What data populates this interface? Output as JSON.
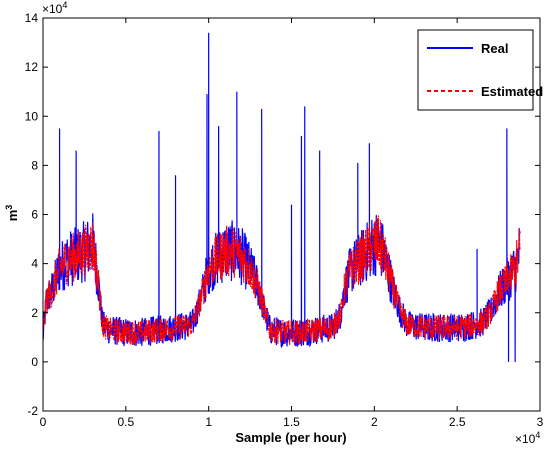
{
  "chart_data": {
    "type": "line",
    "xlabel": "Sample (per hour)",
    "ylabel": "m",
    "ylabel_superscript": "3",
    "x_multiplier": "×10",
    "x_multiplier_exp": "4",
    "y_multiplier": "×10",
    "y_multiplier_exp": "4",
    "xlim": [
      0,
      3
    ],
    "ylim": [
      -2,
      14
    ],
    "x_ticks": [
      0,
      0.5,
      1,
      1.5,
      2,
      2.5,
      3
    ],
    "x_tick_labels": [
      "0",
      "0.5",
      "1",
      "1.5",
      "2",
      "2.5",
      "3"
    ],
    "y_ticks": [
      -2,
      0,
      2,
      4,
      6,
      8,
      10,
      12,
      14
    ],
    "y_tick_labels": [
      "-2",
      "0",
      "2",
      "4",
      "6",
      "8",
      "10",
      "12",
      "14"
    ],
    "grid": false,
    "legend_position": "top-right",
    "series": [
      {
        "name": "Real",
        "color": "#0000ff",
        "style": "solid",
        "base": [
          [
            0,
            1.0
          ],
          [
            0.02,
            2.5
          ],
          [
            0.06,
            3.0
          ],
          [
            0.1,
            3.8
          ],
          [
            0.15,
            4.2
          ],
          [
            0.2,
            4.3
          ],
          [
            0.25,
            4.5
          ],
          [
            0.3,
            4.8
          ],
          [
            0.33,
            3.5
          ],
          [
            0.36,
            1.5
          ],
          [
            0.4,
            1.3
          ],
          [
            0.5,
            1.2
          ],
          [
            0.6,
            1.2
          ],
          [
            0.7,
            1.3
          ],
          [
            0.8,
            1.4
          ],
          [
            0.9,
            1.5
          ],
          [
            0.95,
            2.5
          ],
          [
            1.0,
            3.8
          ],
          [
            1.05,
            4.2
          ],
          [
            1.1,
            4.5
          ],
          [
            1.15,
            4.5
          ],
          [
            1.2,
            4.3
          ],
          [
            1.25,
            3.8
          ],
          [
            1.3,
            3.0
          ],
          [
            1.34,
            2.0
          ],
          [
            1.37,
            1.3
          ],
          [
            1.45,
            1.2
          ],
          [
            1.55,
            1.2
          ],
          [
            1.65,
            1.3
          ],
          [
            1.75,
            1.4
          ],
          [
            1.8,
            2.0
          ],
          [
            1.82,
            3.0
          ],
          [
            1.86,
            3.8
          ],
          [
            1.92,
            4.2
          ],
          [
            1.97,
            4.6
          ],
          [
            2.02,
            4.9
          ],
          [
            2.05,
            4.5
          ],
          [
            2.08,
            3.8
          ],
          [
            2.12,
            2.8
          ],
          [
            2.16,
            2.0
          ],
          [
            2.2,
            1.5
          ],
          [
            2.3,
            1.4
          ],
          [
            2.4,
            1.4
          ],
          [
            2.5,
            1.4
          ],
          [
            2.6,
            1.5
          ],
          [
            2.65,
            1.6
          ],
          [
            2.7,
            2.0
          ],
          [
            2.75,
            2.8
          ],
          [
            2.8,
            3.3
          ],
          [
            2.85,
            3.8
          ],
          [
            2.88,
            4.6
          ]
        ],
        "spikes": [
          [
            0.1,
            9.5
          ],
          [
            0.2,
            8.6
          ],
          [
            0.7,
            9.4
          ],
          [
            0.8,
            7.6
          ],
          [
            0.99,
            10.9
          ],
          [
            1.0,
            13.4
          ],
          [
            1.06,
            9.6
          ],
          [
            1.17,
            11.0
          ],
          [
            1.32,
            10.3
          ],
          [
            1.5,
            6.4
          ],
          [
            1.56,
            9.2
          ],
          [
            1.58,
            10.4
          ],
          [
            1.67,
            8.6
          ],
          [
            1.9,
            8.1
          ],
          [
            1.97,
            8.9
          ],
          [
            2.62,
            4.6
          ],
          [
            2.8,
            9.5
          ],
          [
            2.81,
            0.0
          ],
          [
            2.85,
            0.0
          ]
        ]
      },
      {
        "name": "Estimated",
        "color": "#ff0000",
        "style": "dashed",
        "base": [
          [
            0,
            1.0
          ],
          [
            0.02,
            2.5
          ],
          [
            0.06,
            3.0
          ],
          [
            0.1,
            3.8
          ],
          [
            0.15,
            4.2
          ],
          [
            0.2,
            4.3
          ],
          [
            0.25,
            4.5
          ],
          [
            0.3,
            4.8
          ],
          [
            0.33,
            3.5
          ],
          [
            0.36,
            1.5
          ],
          [
            0.4,
            1.3
          ],
          [
            0.5,
            1.2
          ],
          [
            0.6,
            1.2
          ],
          [
            0.7,
            1.3
          ],
          [
            0.8,
            1.4
          ],
          [
            0.9,
            1.5
          ],
          [
            0.95,
            2.5
          ],
          [
            1.0,
            3.8
          ],
          [
            1.05,
            4.2
          ],
          [
            1.1,
            4.5
          ],
          [
            1.15,
            4.5
          ],
          [
            1.2,
            4.3
          ],
          [
            1.25,
            3.8
          ],
          [
            1.3,
            3.0
          ],
          [
            1.34,
            2.0
          ],
          [
            1.37,
            1.3
          ],
          [
            1.45,
            1.2
          ],
          [
            1.55,
            1.2
          ],
          [
            1.65,
            1.3
          ],
          [
            1.75,
            1.4
          ],
          [
            1.8,
            2.0
          ],
          [
            1.82,
            3.0
          ],
          [
            1.86,
            3.8
          ],
          [
            1.92,
            4.2
          ],
          [
            1.97,
            4.6
          ],
          [
            2.02,
            4.9
          ],
          [
            2.05,
            4.5
          ],
          [
            2.08,
            3.8
          ],
          [
            2.12,
            2.8
          ],
          [
            2.16,
            2.0
          ],
          [
            2.2,
            1.5
          ],
          [
            2.3,
            1.4
          ],
          [
            2.4,
            1.4
          ],
          [
            2.5,
            1.4
          ],
          [
            2.6,
            1.5
          ],
          [
            2.65,
            1.6
          ],
          [
            2.7,
            2.0
          ],
          [
            2.75,
            2.8
          ],
          [
            2.8,
            3.3
          ],
          [
            2.85,
            3.8
          ],
          [
            2.88,
            4.6
          ]
        ]
      }
    ]
  }
}
